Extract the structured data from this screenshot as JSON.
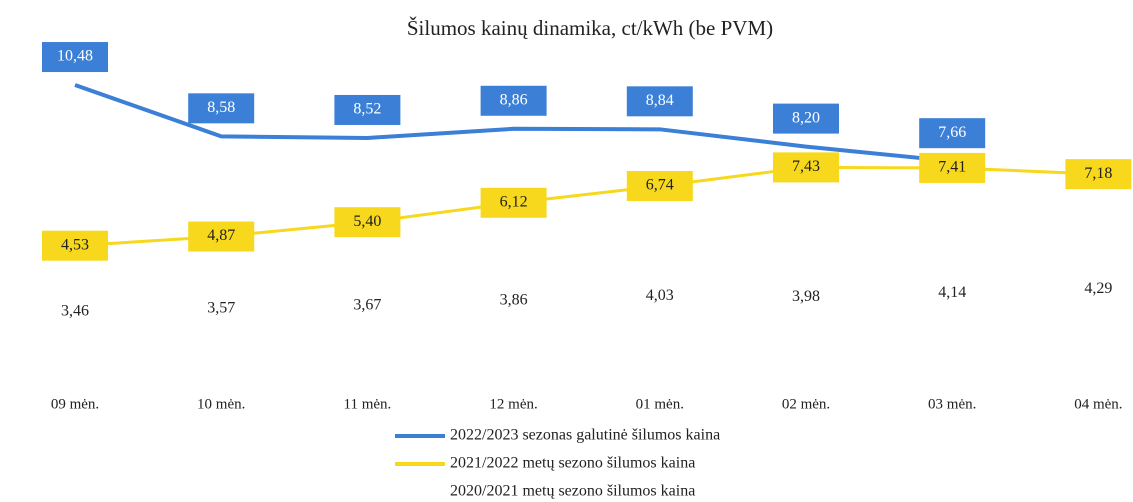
{
  "chart_data": {
    "type": "line",
    "title": "Šilumos kainų dinamika, ct/kWh (be PVM)",
    "categories": [
      "09 mėn.",
      "10 mėn.",
      "11 mėn.",
      "12 mėn.",
      "01 mėn.",
      "02 mėn.",
      "03 mėn.",
      "04 mėn."
    ],
    "series": [
      {
        "name": "2022/2023 sezonas galutinė šilumos kaina",
        "color": "#3b7fd6",
        "values": [
          10.48,
          8.58,
          8.52,
          8.86,
          8.84,
          8.2,
          7.66,
          null
        ],
        "value_labels": [
          "10,48",
          "8,58",
          "8,52",
          "8,86",
          "8,84",
          "8,20",
          "7,66",
          null
        ]
      },
      {
        "name": "2021/2022 metų sezono šilumos kaina",
        "color": "#f7d81c",
        "values": [
          4.53,
          4.87,
          5.4,
          6.12,
          6.74,
          7.43,
          7.41,
          7.18
        ],
        "value_labels": [
          "4,53",
          "4,87",
          "5,40",
          "6,12",
          "6,74",
          "7,43",
          "7,41",
          "7,18"
        ]
      },
      {
        "name": "2020/2021 metų sezono šilumos kaina",
        "color": "#ffffff",
        "values": [
          3.46,
          3.57,
          3.67,
          3.86,
          4.03,
          3.98,
          4.14,
          4.29
        ],
        "value_labels": [
          "3,46",
          "3,57",
          "3,67",
          "3,86",
          "4,03",
          "3,98",
          "4,14",
          "4,29"
        ]
      }
    ],
    "legend": "bottom"
  }
}
